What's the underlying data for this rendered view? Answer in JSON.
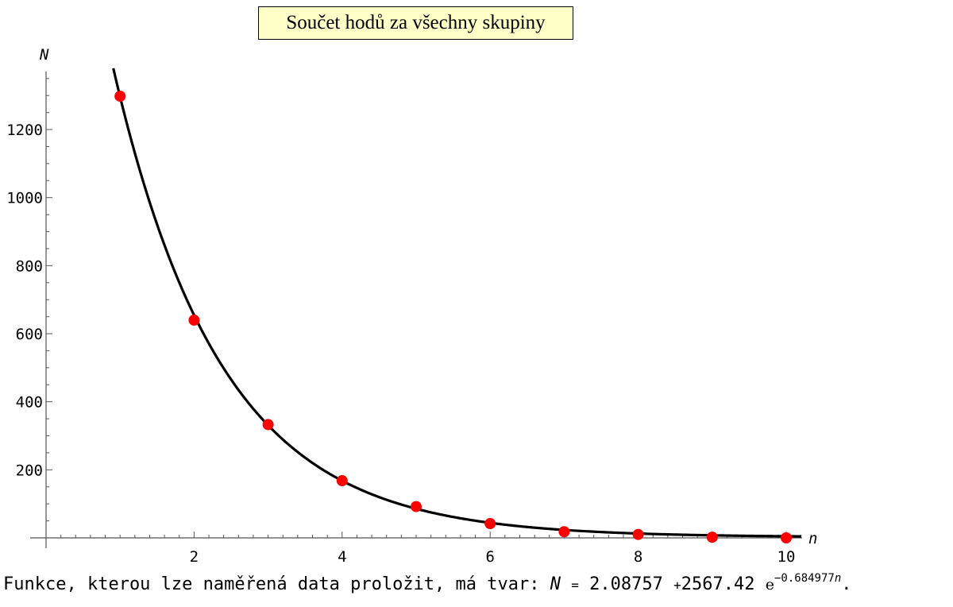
{
  "chart_data": {
    "type": "scatter",
    "title": "Součet hodů za všechny skupiny",
    "xlabel": "n",
    "ylabel": "N",
    "xlim": [
      0,
      10.2
    ],
    "ylim": [
      0,
      1380
    ],
    "x_ticks": [
      2,
      4,
      6,
      8,
      10
    ],
    "y_ticks": [
      200,
      400,
      600,
      800,
      1000,
      1200
    ],
    "grid": false,
    "legend": "none",
    "series": [
      {
        "x": [
          1,
          2,
          3,
          4,
          5,
          6,
          7,
          8,
          9,
          10
        ],
        "y": [
          1298,
          640,
          333,
          168,
          92,
          42,
          18,
          10,
          2,
          0
        ],
        "color": "#ff0000"
      }
    ],
    "fit": {
      "a": 2.08757,
      "b": 2567.42,
      "k": 0.684977,
      "color": "#000000"
    }
  },
  "caption": {
    "prefix": "Funkce, kterou lze naměřená data proložit, má tvar:",
    "var": "N",
    "equals": "=",
    "a": "2.08757",
    "plus": "+",
    "b": "2567.42",
    "e": "e",
    "exponent": "−0.684977",
    "exp_var": "n",
    "end": "."
  }
}
